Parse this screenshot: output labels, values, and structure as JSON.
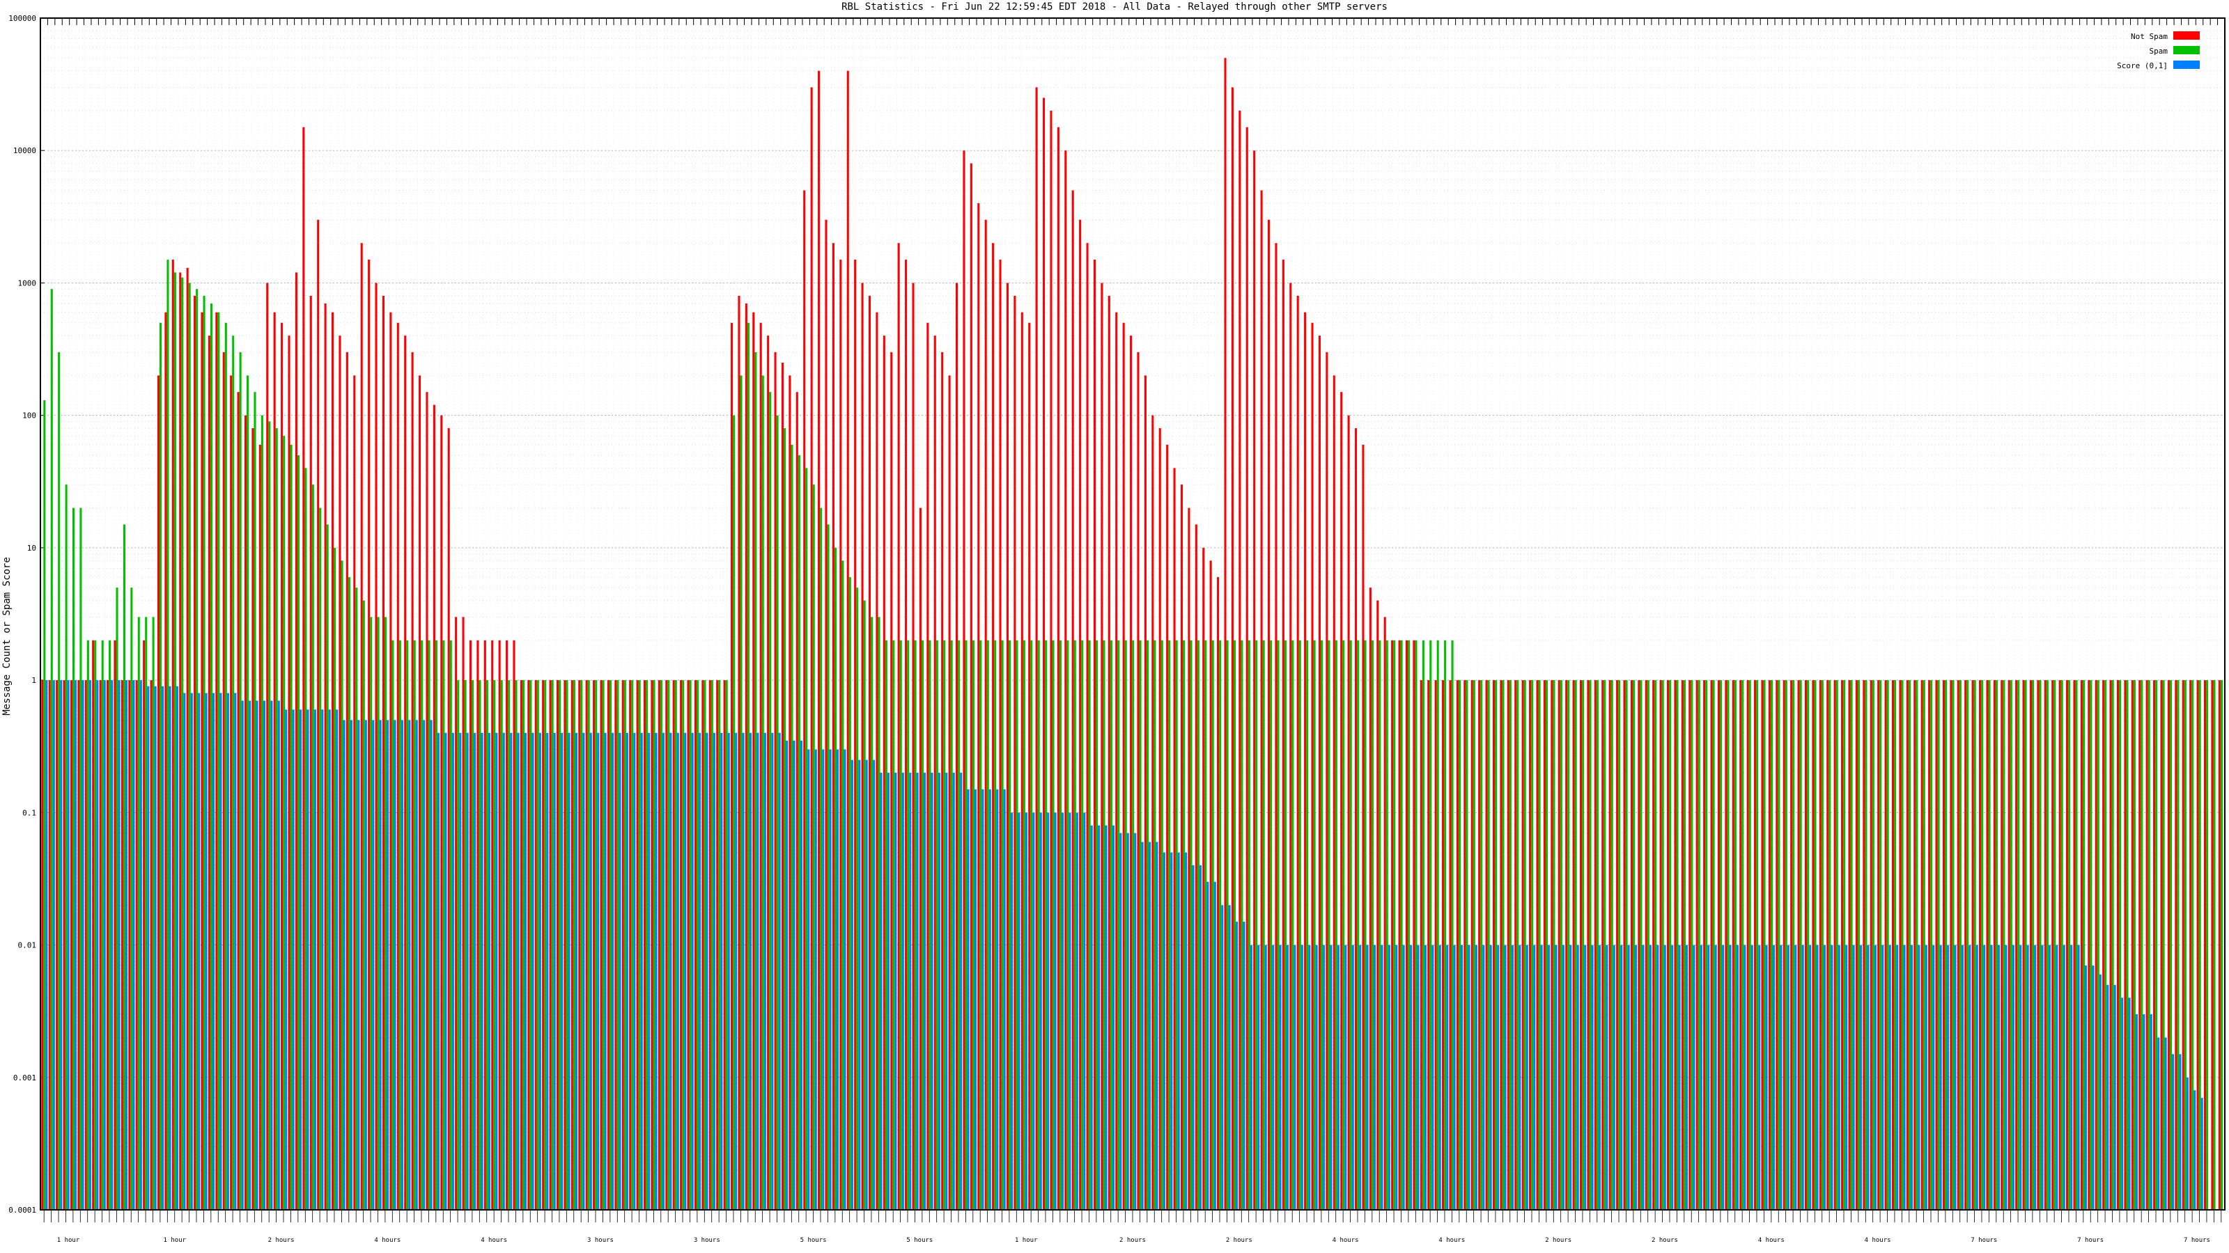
{
  "chart_data": {
    "type": "bar",
    "scale": "log",
    "title": "RBL Statistics - Fri Jun 22 12:59:45 EDT 2018 - All Data - Relayed through other SMTP servers",
    "ylabel": "Message Count or Spam Score",
    "ylim": [
      0.0001,
      100000
    ],
    "y_ticks": [
      "0.0001",
      "0.001",
      "0.01",
      "0.1",
      "1",
      "10",
      "100",
      "1000",
      "10000",
      "100000"
    ],
    "grid": true,
    "legend_position": "top-right",
    "legend": [
      {
        "name": "Not Spam",
        "color": "#ff0000"
      },
      {
        "name": "Spam",
        "color": "#00c000"
      },
      {
        "name": "Score (0,1]",
        "color": "#0080ff"
      }
    ],
    "group_labels": [
      "1 hour",
      "1 hour",
      "2 hours",
      "4 hours",
      "4 hours",
      "3 hours",
      "3 hours",
      "5 hours",
      "5 hours",
      "1 hour",
      "2 hours",
      "2 hours",
      "4 hours",
      "4 hours",
      "2 hours",
      "2 hours",
      "4 hours",
      "4 hours",
      "7 hours",
      "7 hours",
      "7 hours"
    ],
    "bars_count": 301,
    "series": [
      {
        "name": "Not Spam",
        "values": [
          1,
          1,
          1,
          1,
          1,
          1,
          1,
          2,
          1,
          1,
          2,
          1,
          1,
          1,
          2,
          1,
          200,
          600,
          1500,
          1200,
          1300,
          800,
          600,
          400,
          600,
          300,
          200,
          150,
          100,
          80,
          60,
          1000,
          600,
          500,
          400,
          1200,
          15000,
          800,
          3000,
          700,
          600,
          400,
          300,
          200,
          2000,
          1500,
          1000,
          800,
          600,
          500,
          400,
          300,
          200,
          150,
          120,
          100,
          80,
          3,
          3,
          2,
          2,
          2,
          2,
          2,
          2,
          2,
          1,
          1,
          1,
          1,
          1,
          1,
          1,
          1,
          1,
          1,
          1,
          1,
          1,
          1,
          1,
          1,
          1,
          1,
          1,
          1,
          1,
          1,
          1,
          1,
          1,
          1,
          1,
          1,
          1,
          500,
          800,
          700,
          600,
          500,
          400,
          300,
          250,
          200,
          150,
          5000,
          30000,
          40000,
          3000,
          2000,
          1500,
          40000,
          1500,
          1000,
          800,
          600,
          400,
          300,
          2000,
          1500,
          1000,
          20,
          500,
          400,
          300,
          200,
          1000,
          10000,
          8000,
          4000,
          3000,
          2000,
          1500,
          1000,
          800,
          600,
          500,
          30000,
          25000,
          20000,
          15000,
          10000,
          5000,
          3000,
          2000,
          1500,
          1000,
          800,
          600,
          500,
          400,
          300,
          200,
          100,
          80,
          60,
          40,
          30,
          20,
          15,
          10,
          8,
          6,
          50000,
          30000,
          20000,
          15000,
          10000,
          5000,
          3000,
          2000,
          1500,
          1000,
          800,
          600,
          500,
          400,
          300,
          200,
          150,
          100,
          80,
          60,
          5,
          4,
          3,
          2,
          2,
          2,
          2,
          1,
          1,
          1,
          1,
          1,
          1,
          1,
          1,
          1,
          1,
          1,
          1,
          1,
          1,
          1,
          1,
          1,
          1,
          1,
          1,
          1,
          1,
          1,
          1,
          1,
          1,
          1,
          1,
          1,
          1,
          1,
          1,
          1,
          1,
          1,
          1,
          1,
          1,
          1,
          1,
          1,
          1,
          1,
          1,
          1,
          1,
          1,
          1,
          1,
          1,
          1,
          1,
          1,
          1,
          1,
          1,
          1,
          1,
          1,
          1,
          1,
          1,
          1,
          1,
          1,
          1,
          1,
          1,
          1,
          1,
          1,
          1,
          1,
          1,
          1,
          1,
          1,
          1,
          1,
          1,
          1,
          1,
          1,
          1,
          1,
          1,
          1,
          1,
          1,
          1,
          1,
          1,
          1,
          1,
          1,
          1,
          1,
          1,
          1,
          1,
          1,
          1,
          1,
          1,
          1,
          1,
          1,
          1,
          1,
          1,
          1,
          1,
          1,
          1,
          1,
          1,
          1,
          1
        ]
      },
      {
        "name": "Spam",
        "values": [
          130,
          900,
          300,
          30,
          20,
          20,
          2,
          2,
          2,
          2,
          5,
          15,
          5,
          3,
          3,
          3,
          500,
          1500,
          1200,
          1100,
          1000,
          900,
          800,
          700,
          600,
          500,
          400,
          300,
          200,
          150,
          100,
          90,
          80,
          70,
          60,
          50,
          40,
          30,
          20,
          15,
          10,
          8,
          6,
          5,
          4,
          3,
          3,
          3,
          2,
          2,
          2,
          2,
          2,
          2,
          2,
          2,
          2,
          1,
          1,
          1,
          1,
          1,
          1,
          1,
          1,
          1,
          1,
          1,
          1,
          1,
          1,
          1,
          1,
          1,
          1,
          1,
          1,
          1,
          1,
          1,
          1,
          1,
          1,
          1,
          1,
          1,
          1,
          1,
          1,
          1,
          1,
          1,
          1,
          1,
          1,
          100,
          200,
          500,
          300,
          200,
          150,
          100,
          80,
          60,
          50,
          40,
          30,
          20,
          15,
          10,
          8,
          6,
          5,
          4,
          3,
          3,
          2,
          2,
          2,
          2,
          2,
          2,
          2,
          2,
          2,
          2,
          2,
          2,
          2,
          2,
          2,
          2,
          2,
          2,
          2,
          2,
          2,
          2,
          2,
          2,
          2,
          2,
          2,
          2,
          2,
          2,
          2,
          2,
          2,
          2,
          2,
          2,
          2,
          2,
          2,
          2,
          2,
          2,
          2,
          2,
          2,
          2,
          2,
          2,
          2,
          2,
          2,
          2,
          2,
          2,
          2,
          2,
          2,
          2,
          2,
          2,
          2,
          2,
          2,
          2,
          2,
          2,
          2,
          2,
          2,
          2,
          2,
          2,
          2,
          2,
          2,
          2,
          2,
          2,
          2,
          1,
          1,
          1,
          1,
          1,
          1,
          1,
          1,
          1,
          1,
          1,
          1,
          1,
          1,
          1,
          1,
          1,
          1,
          1,
          1,
          1,
          1,
          1,
          1,
          1,
          1,
          1,
          1,
          1,
          1,
          1,
          1,
          1,
          1,
          1,
          1,
          1,
          1,
          1,
          1,
          1,
          1,
          1,
          1,
          1,
          1,
          1,
          1,
          1,
          1,
          1,
          1,
          1,
          1,
          1,
          1,
          1,
          1,
          1,
          1,
          1,
          1,
          1,
          1,
          1,
          1,
          1,
          1,
          1,
          1,
          1,
          1,
          1,
          1,
          1,
          1,
          1,
          1,
          1,
          1,
          1,
          1,
          1,
          1,
          1,
          1,
          1,
          1,
          1,
          1,
          1,
          1,
          1,
          1,
          1,
          1,
          1,
          1,
          1,
          1,
          1,
          1,
          1,
          1,
          1,
          1,
          1,
          1,
          1,
          1,
          1,
          1,
          1,
          1,
          1,
          1,
          1,
          1,
          1,
          1
        ]
      },
      {
        "name": "Score (0,1]",
        "values": [
          1,
          1,
          1,
          1,
          1,
          1,
          1,
          1,
          1,
          1,
          1,
          1,
          1,
          1,
          0.9,
          0.9,
          0.9,
          0.9,
          0.9,
          0.8,
          0.8,
          0.8,
          0.8,
          0.8,
          0.8,
          0.8,
          0.8,
          0.7,
          0.7,
          0.7,
          0.7,
          0.7,
          0.7,
          0.6,
          0.6,
          0.6,
          0.6,
          0.6,
          0.6,
          0.6,
          0.6,
          0.5,
          0.5,
          0.5,
          0.5,
          0.5,
          0.5,
          0.5,
          0.5,
          0.5,
          0.5,
          0.5,
          0.5,
          0.5,
          0.4,
          0.4,
          0.4,
          0.4,
          0.4,
          0.4,
          0.4,
          0.4,
          0.4,
          0.4,
          0.4,
          0.4,
          0.4,
          0.4,
          0.4,
          0.4,
          0.4,
          0.4,
          0.4,
          0.4,
          0.4,
          0.4,
          0.4,
          0.4,
          0.4,
          0.4,
          0.4,
          0.4,
          0.4,
          0.4,
          0.4,
          0.4,
          0.4,
          0.4,
          0.4,
          0.4,
          0.4,
          0.4,
          0.4,
          0.4,
          0.4,
          0.4,
          0.4,
          0.4,
          0.4,
          0.4,
          0.4,
          0.4,
          0.35,
          0.35,
          0.35,
          0.3,
          0.3,
          0.3,
          0.3,
          0.3,
          0.3,
          0.25,
          0.25,
          0.25,
          0.25,
          0.2,
          0.2,
          0.2,
          0.2,
          0.2,
          0.2,
          0.2,
          0.2,
          0.2,
          0.2,
          0.2,
          0.2,
          0.15,
          0.15,
          0.15,
          0.15,
          0.15,
          0.15,
          0.1,
          0.1,
          0.1,
          0.1,
          0.1,
          0.1,
          0.1,
          0.1,
          0.1,
          0.1,
          0.1,
          0.08,
          0.08,
          0.08,
          0.08,
          0.07,
          0.07,
          0.07,
          0.06,
          0.06,
          0.06,
          0.05,
          0.05,
          0.05,
          0.05,
          0.04,
          0.04,
          0.03,
          0.03,
          0.02,
          0.02,
          0.015,
          0.015,
          0.01,
          0.01,
          0.01,
          0.01,
          0.01,
          0.01,
          0.01,
          0.01,
          0.01,
          0.01,
          0.01,
          0.01,
          0.01,
          0.01,
          0.01,
          0.01,
          0.01,
          0.01,
          0.01,
          0.01,
          0.01,
          0.01,
          0.01,
          0.01,
          0.01,
          0.01,
          0.01,
          0.01,
          0.01,
          0.01,
          0.01,
          0.01,
          0.01,
          0.01,
          0.01,
          0.01,
          0.01,
          0.01,
          0.01,
          0.01,
          0.01,
          0.01,
          0.01,
          0.01,
          0.01,
          0.01,
          0.01,
          0.01,
          0.01,
          0.01,
          0.01,
          0.01,
          0.01,
          0.01,
          0.01,
          0.01,
          0.01,
          0.01,
          0.01,
          0.01,
          0.01,
          0.01,
          0.01,
          0.01,
          0.01,
          0.01,
          0.01,
          0.01,
          0.01,
          0.01,
          0.01,
          0.01,
          0.01,
          0.01,
          0.01,
          0.01,
          0.01,
          0.01,
          0.01,
          0.01,
          0.01,
          0.01,
          0.01,
          0.01,
          0.01,
          0.01,
          0.01,
          0.01,
          0.01,
          0.01,
          0.01,
          0.01,
          0.01,
          0.01,
          0.01,
          0.01,
          0.01,
          0.01,
          0.01,
          0.01,
          0.01,
          0.01,
          0.01,
          0.01,
          0.01,
          0.01,
          0.01,
          0.01,
          0.01,
          0.01,
          0.01,
          0.01,
          0.01,
          0.01,
          0.01,
          0.007,
          0.007,
          0.006,
          0.005,
          0.005,
          0.004,
          0.004,
          0.003,
          0.003,
          0.003,
          0.002,
          0.002,
          0.0015,
          0.0015,
          0.001,
          0.0008,
          0.0007
        ]
      }
    ]
  }
}
